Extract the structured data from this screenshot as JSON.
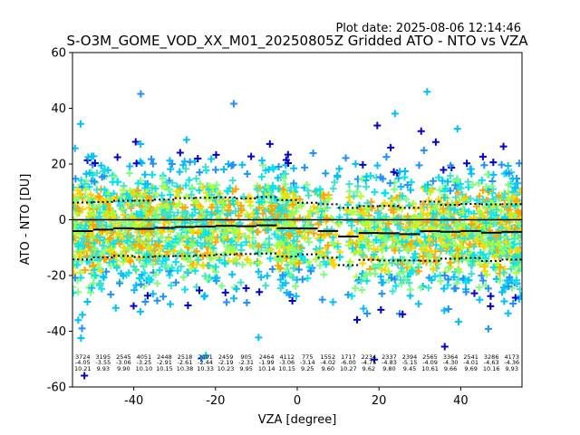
{
  "plot_date": "Plot date: 2025-08-06 12:14:46",
  "chart_data": {
    "type": "scatter",
    "title": "S-O3M_GOME_VOD_XX_M01_20250805Z Gridded ATO - NTO vs VZA",
    "xlabel": "VZA [degree]",
    "ylabel": "ATO - NTO [DU]",
    "xlim": [
      -55,
      55
    ],
    "ylim": [
      -60,
      60
    ],
    "xticks": [
      -40,
      -20,
      0,
      20,
      40
    ],
    "yticks": [
      -60,
      -40,
      -20,
      0,
      20,
      40,
      60
    ],
    "grid": false,
    "legend": "none",
    "zero_line": 0,
    "marker": "+",
    "colors": [
      "#0000cd",
      "#1e90ff",
      "#00bfff",
      "#00e5ee",
      "#40e0d0",
      "#7fff7f",
      "#adff2f",
      "#ffd700",
      "#ffa500"
    ],
    "bins": [
      {
        "vza_lo": -55,
        "vza_hi": -50,
        "count": "3724",
        "mean": "-4.05",
        "std": "10.21"
      },
      {
        "vza_lo": -50,
        "vza_hi": -45,
        "count": "3195",
        "mean": "-3.55",
        "std": "9.93"
      },
      {
        "vza_lo": -45,
        "vza_hi": -40,
        "count": "2545",
        "mean": "-3.06",
        "std": "9.90"
      },
      {
        "vza_lo": -40,
        "vza_hi": -35,
        "count": "4051",
        "mean": "-3.25",
        "std": "10.10"
      },
      {
        "vza_lo": -35,
        "vza_hi": -30,
        "count": "2448",
        "mean": "-2.91",
        "std": "10.15"
      },
      {
        "vza_lo": -30,
        "vza_hi": -25,
        "count": "2518",
        "mean": "-2.61",
        "std": "10.38"
      },
      {
        "vza_lo": -25,
        "vza_hi": -20,
        "count": "2491",
        "mean": "-2.44",
        "std": "10.33"
      },
      {
        "vza_lo": -20,
        "vza_hi": -15,
        "count": "2459",
        "mean": "-2.19",
        "std": "10.23"
      },
      {
        "vza_lo": -15,
        "vza_hi": -10,
        "count": "905",
        "mean": "-2.31",
        "std": "9.95"
      },
      {
        "vza_lo": -10,
        "vza_hi": -5,
        "count": "2464",
        "mean": "-1.99",
        "std": "10.14"
      },
      {
        "vza_lo": -5,
        "vza_hi": 0,
        "count": "4112",
        "mean": "-3.06",
        "std": "10.15"
      },
      {
        "vza_lo": 0,
        "vza_hi": 5,
        "count": "775",
        "mean": "-3.14",
        "std": "9.25"
      },
      {
        "vza_lo": 5,
        "vza_hi": 10,
        "count": "1552",
        "mean": "-4.02",
        "std": "9.60"
      },
      {
        "vza_lo": 10,
        "vza_hi": 15,
        "count": "1717",
        "mean": "-6.00",
        "std": "10.27"
      },
      {
        "vza_lo": 15,
        "vza_hi": 20,
        "count": "2234",
        "mean": "-4.75",
        "std": "9.62"
      },
      {
        "vza_lo": 20,
        "vza_hi": 25,
        "count": "2337",
        "mean": "-4.83",
        "std": "9.80"
      },
      {
        "vza_lo": 25,
        "vza_hi": 30,
        "count": "2394",
        "mean": "-5.15",
        "std": "9.45"
      },
      {
        "vza_lo": 30,
        "vza_hi": 35,
        "count": "2565",
        "mean": "-4.09",
        "std": "10.61"
      },
      {
        "vza_lo": 35,
        "vza_hi": 40,
        "count": "3364",
        "mean": "-4.30",
        "std": "9.66"
      },
      {
        "vza_lo": 40,
        "vza_hi": 45,
        "count": "2541",
        "mean": "-4.01",
        "std": "9.69"
      },
      {
        "vza_lo": 45,
        "vza_hi": 50,
        "count": "3286",
        "mean": "-4.63",
        "std": "10.16"
      },
      {
        "vza_lo": 50,
        "vza_hi": 55,
        "count": "4173",
        "mean": "-4.36",
        "std": "9.93"
      }
    ]
  }
}
